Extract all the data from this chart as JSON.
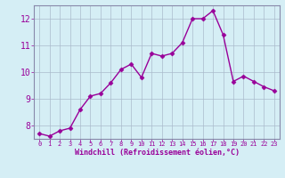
{
  "x": [
    0,
    1,
    2,
    3,
    4,
    5,
    6,
    7,
    8,
    9,
    10,
    11,
    12,
    13,
    14,
    15,
    16,
    17,
    18,
    19,
    20,
    21,
    22,
    23
  ],
  "y": [
    7.7,
    7.6,
    7.8,
    7.9,
    8.6,
    9.1,
    9.2,
    9.6,
    10.1,
    10.3,
    9.8,
    10.7,
    10.6,
    10.7,
    11.1,
    12.0,
    12.0,
    12.3,
    11.4,
    9.65,
    9.85,
    9.65,
    9.45,
    9.3
  ],
  "ylim": [
    7.5,
    12.5
  ],
  "yticks": [
    8,
    9,
    10,
    11,
    12
  ],
  "xticks": [
    0,
    1,
    2,
    3,
    4,
    5,
    6,
    7,
    8,
    9,
    10,
    11,
    12,
    13,
    14,
    15,
    16,
    17,
    18,
    19,
    20,
    21,
    22,
    23
  ],
  "xlabel": "Windchill (Refroidissement éolien,°C)",
  "line_color": "#990099",
  "marker": "D",
  "marker_size": 2.5,
  "background_color": "#d5eef5",
  "plot_bg_color": "#d5eef5",
  "grid_color": "#aabbcc",
  "tick_label_color": "#990099",
  "axis_label_color": "#990099",
  "line_width": 1.0,
  "spine_color": "#8888aa"
}
